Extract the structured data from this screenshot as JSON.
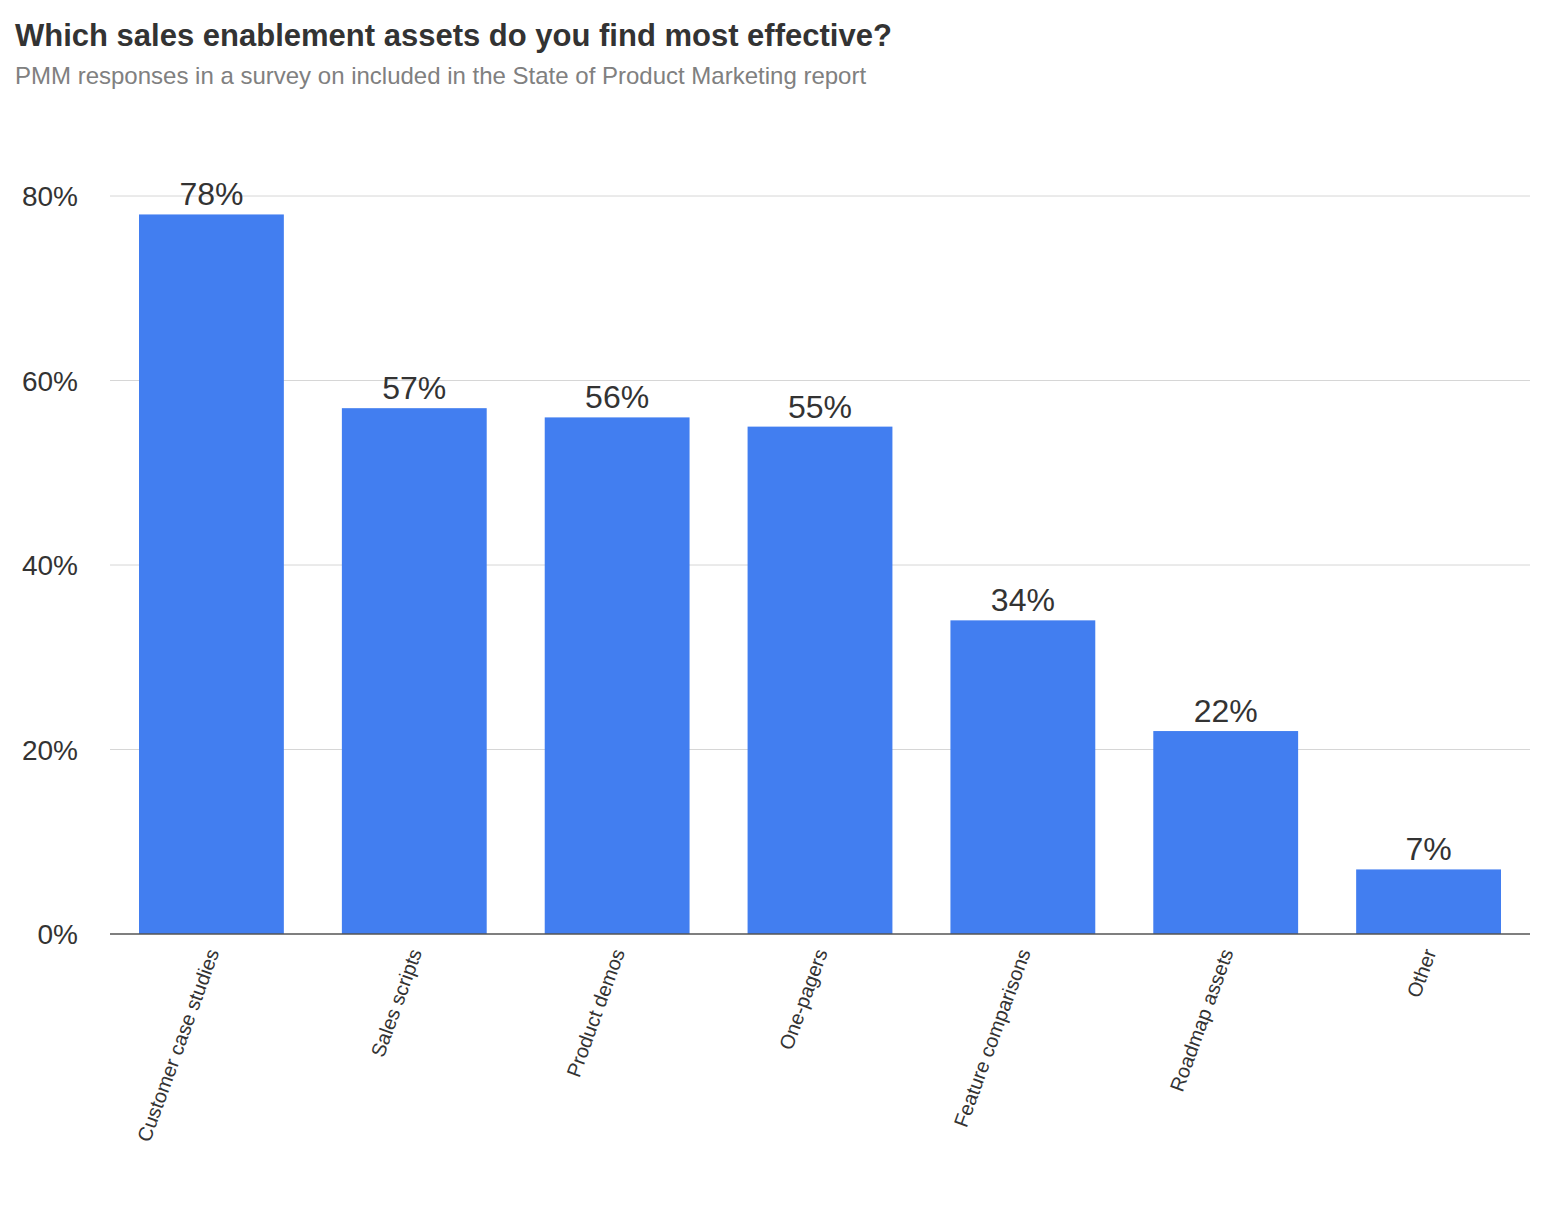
{
  "chart_data": {
    "type": "bar",
    "title": "Which sales enablement assets do you find most effective?",
    "subtitle": "PMM responses in a survey on included in the State of Product Marketing report",
    "categories": [
      "Customer case studies",
      "Sales scripts",
      "Product demos",
      "One-pagers",
      "Feature comparisons",
      "Roadmap assets",
      "Other"
    ],
    "values": [
      78,
      57,
      56,
      55,
      34,
      22,
      7
    ],
    "value_labels": [
      "78%",
      "57%",
      "56%",
      "55%",
      "34%",
      "22%",
      "7%"
    ],
    "color": "#427ef0",
    "ylim": [
      0,
      80
    ],
    "yticks": [
      {
        "value": 0,
        "label": "0%"
      },
      {
        "value": 20,
        "label": "20%"
      },
      {
        "value": 40,
        "label": "40%"
      },
      {
        "value": 60,
        "label": "60%"
      },
      {
        "value": 80,
        "label": "80%"
      }
    ],
    "grid": true,
    "data_labels": true
  }
}
